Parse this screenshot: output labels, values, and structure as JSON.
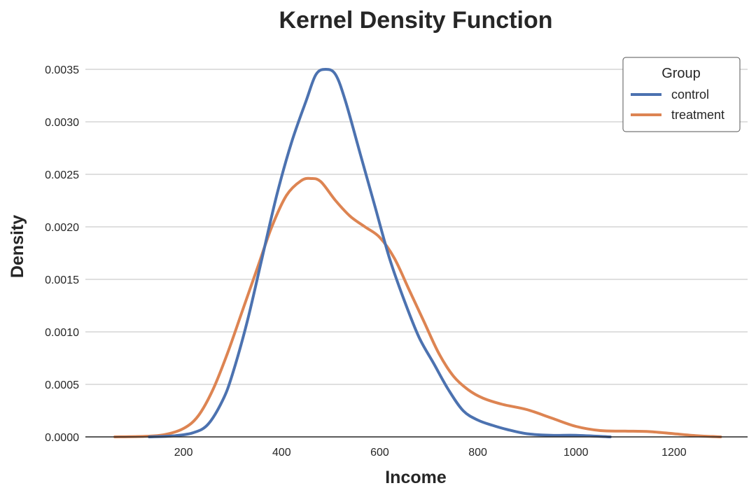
{
  "chart_data": {
    "type": "line",
    "title": "Kernel Density Function",
    "xlabel": "Income",
    "ylabel": "Density",
    "xlim": [
      0,
      1350
    ],
    "ylim": [
      0,
      0.0035
    ],
    "xticks": [
      200,
      400,
      600,
      800,
      1000,
      1200
    ],
    "xtick_labels": [
      "200",
      "400",
      "600",
      "800",
      "1000",
      "1200"
    ],
    "yticks": [
      0,
      0.0005,
      0.001,
      0.0015,
      0.002,
      0.0025,
      0.003,
      0.0035
    ],
    "ytick_labels": [
      "0.0000",
      "0.0005",
      "0.0010",
      "0.0015",
      "0.0020",
      "0.0025",
      "0.0030",
      "0.0035"
    ],
    "grid": "horizontal",
    "legend": {
      "title": "Group",
      "placement": "top-right"
    },
    "series": [
      {
        "name": "control",
        "color": "#4c72b0",
        "points": [
          [
            130,
            0
          ],
          [
            180,
            1e-05
          ],
          [
            220,
            4e-05
          ],
          [
            250,
            0.00012
          ],
          [
            280,
            0.00035
          ],
          [
            300,
            0.0006
          ],
          [
            330,
            0.0011
          ],
          [
            360,
            0.0017
          ],
          [
            390,
            0.0023
          ],
          [
            420,
            0.0028
          ],
          [
            450,
            0.0032
          ],
          [
            470,
            0.00345
          ],
          [
            490,
            0.0035
          ],
          [
            510,
            0.00345
          ],
          [
            530,
            0.0032
          ],
          [
            560,
            0.0027
          ],
          [
            590,
            0.0022
          ],
          [
            620,
            0.0017
          ],
          [
            650,
            0.0013
          ],
          [
            680,
            0.00095
          ],
          [
            710,
            0.0007
          ],
          [
            740,
            0.00045
          ],
          [
            770,
            0.00025
          ],
          [
            800,
            0.00016
          ],
          [
            830,
            0.00011
          ],
          [
            860,
            7e-05
          ],
          [
            900,
            3e-05
          ],
          [
            950,
            1.5e-05
          ],
          [
            1000,
            1.5e-05
          ],
          [
            1070,
            0
          ]
        ]
      },
      {
        "name": "treatment",
        "color": "#dd8452",
        "points": [
          [
            60,
            0
          ],
          [
            120,
            5e-06
          ],
          [
            160,
            2e-05
          ],
          [
            200,
            8e-05
          ],
          [
            230,
            0.0002
          ],
          [
            260,
            0.00045
          ],
          [
            290,
            0.0008
          ],
          [
            320,
            0.0012
          ],
          [
            350,
            0.0016
          ],
          [
            380,
            0.002
          ],
          [
            410,
            0.0023
          ],
          [
            440,
            0.00244
          ],
          [
            460,
            0.00246
          ],
          [
            480,
            0.00243
          ],
          [
            510,
            0.00225
          ],
          [
            540,
            0.0021
          ],
          [
            570,
            0.002
          ],
          [
            600,
            0.0019
          ],
          [
            630,
            0.0017
          ],
          [
            660,
            0.0014
          ],
          [
            690,
            0.0011
          ],
          [
            720,
            0.0008
          ],
          [
            750,
            0.00058
          ],
          [
            780,
            0.00045
          ],
          [
            810,
            0.00037
          ],
          [
            850,
            0.00031
          ],
          [
            900,
            0.00026
          ],
          [
            950,
            0.00018
          ],
          [
            1000,
            0.0001
          ],
          [
            1050,
            6e-05
          ],
          [
            1100,
            5.5e-05
          ],
          [
            1150,
            5e-05
          ],
          [
            1200,
            3e-05
          ],
          [
            1250,
            1e-05
          ],
          [
            1295,
            0
          ]
        ]
      }
    ]
  }
}
